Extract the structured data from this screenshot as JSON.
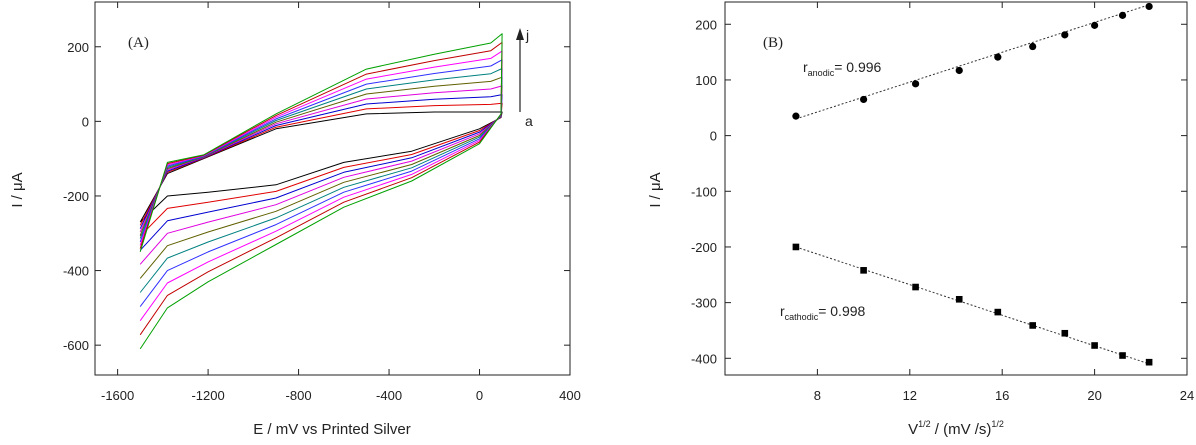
{
  "chart_data": [
    {
      "type": "line",
      "panel_label": "(A)",
      "xlabel": "E / mV vs Printed Silver",
      "ylabel": "I / μA",
      "xlim": [
        -1700,
        400
      ],
      "ylim": [
        -680,
        320
      ],
      "xticks": [
        -1600,
        -1200,
        -800,
        -400,
        0,
        400
      ],
      "yticks": [
        -600,
        -400,
        -200,
        0,
        200
      ],
      "arrow_labels": {
        "top": "j",
        "bottom": "a"
      },
      "series_colors": [
        "#000000",
        "#e00000",
        "#0000d0",
        "#e000e0",
        "#606000",
        "#008080",
        "#3030ff",
        "#ff00ff",
        "#c00000",
        "#00a000"
      ],
      "curves": {
        "a": {
          "anodic_top": 25,
          "anodic_mid": -185,
          "cathodic_min": -270
        },
        "j": {
          "anodic_top": 235,
          "anodic_mid": -70,
          "cathodic_min": -610
        }
      },
      "grid": false,
      "legend": "none"
    },
    {
      "type": "scatter",
      "panel_label": "(B)",
      "xlabel_base": "V",
      "xlabel_sup1": "1/2",
      "xlabel_mid": " / (mV /s)",
      "xlabel_sup2": "1/2",
      "ylabel": "I / μA",
      "xlim": [
        4,
        24
      ],
      "ylim": [
        -430,
        240
      ],
      "xticks": [
        8,
        12,
        16,
        20,
        24
      ],
      "yticks": [
        -400,
        -300,
        -200,
        -100,
        0,
        100,
        200
      ],
      "series": [
        {
          "name": "anodic",
          "marker": "circle",
          "x": [
            7.07,
            10.0,
            12.25,
            14.14,
            15.81,
            17.32,
            18.71,
            20.0,
            21.21,
            22.36
          ],
          "y": [
            35,
            65,
            93,
            117,
            141,
            160,
            181,
            198,
            216,
            232
          ]
        },
        {
          "name": "cathodic",
          "marker": "square",
          "x": [
            7.07,
            10.0,
            12.25,
            14.14,
            15.81,
            17.32,
            18.71,
            20.0,
            21.21,
            22.36
          ],
          "y": [
            -200,
            -242,
            -272,
            -294,
            -317,
            -341,
            -355,
            -377,
            -395,
            -407
          ]
        }
      ],
      "fits": [
        {
          "x": [
            7.07,
            22.36
          ],
          "y": [
            30,
            235
          ]
        },
        {
          "x": [
            7.07,
            22.36
          ],
          "y": [
            -200,
            -410
          ]
        }
      ],
      "annotations": [
        {
          "r": "r",
          "sub": "anodic",
          "text": "= 0.996"
        },
        {
          "r": "r",
          "sub": "cathodic",
          "text": "= 0.998"
        }
      ],
      "grid": false,
      "legend": "none"
    }
  ]
}
